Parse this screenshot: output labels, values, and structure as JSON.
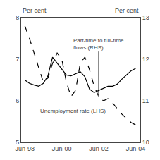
{
  "chart_data": {
    "type": "line",
    "x": [
      1998.5,
      1998.75,
      1999.0,
      1999.25,
      1999.5,
      1999.75,
      2000.0,
      2000.25,
      2000.5,
      2000.75,
      2001.0,
      2001.25,
      2001.5,
      2001.75,
      2002.0,
      2002.25,
      2002.5,
      2002.75,
      2003.0,
      2003.25,
      2003.5,
      2003.75,
      2004.0,
      2004.25,
      2004.5
    ],
    "xlim": [
      1998.3,
      2004.75
    ],
    "xticks": [
      {
        "value": 1998.5,
        "label": "Jun-98"
      },
      {
        "value": 2000.5,
        "label": "Jun-00"
      },
      {
        "value": 2002.5,
        "label": "Jun-02"
      },
      {
        "value": 2004.5,
        "label": "Jun-04"
      }
    ],
    "ylim": [
      5,
      8
    ],
    "yticks": [
      5,
      6,
      7,
      8
    ],
    "y2lim": [
      10,
      13
    ],
    "y2ticks": [
      10,
      11,
      12,
      13
    ],
    "ylabel": "Per cent",
    "y2label": "Per cent",
    "annotations": [
      "Unemployment rate (LHS)",
      "Part-time to full-time\nflows (RHS)"
    ],
    "grid": false,
    "series": [
      {
        "values": [
          6.5,
          6.42,
          6.38,
          6.35,
          6.42,
          6.6,
          7.05,
          6.9,
          6.75,
          6.62,
          6.6,
          6.65,
          6.7,
          6.58,
          6.28,
          6.2,
          6.25,
          6.3,
          6.35,
          6.35,
          6.4,
          6.52,
          6.62,
          6.72,
          6.78
        ],
        "color": "#000000",
        "line_style": "solid"
      },
      {
        "values": [
          12.8,
          12.5,
          12.15,
          11.8,
          11.45,
          11.55,
          11.9,
          12.15,
          12.0,
          11.45,
          11.1,
          11.25,
          11.9,
          12.05,
          11.75,
          11.35,
          11.1,
          11.0,
          11.05,
          10.95,
          10.82,
          10.68,
          10.58,
          10.48,
          10.42
        ],
        "color": "#000000",
        "line_style": "dashed",
        "axis": "y2"
      }
    ]
  }
}
